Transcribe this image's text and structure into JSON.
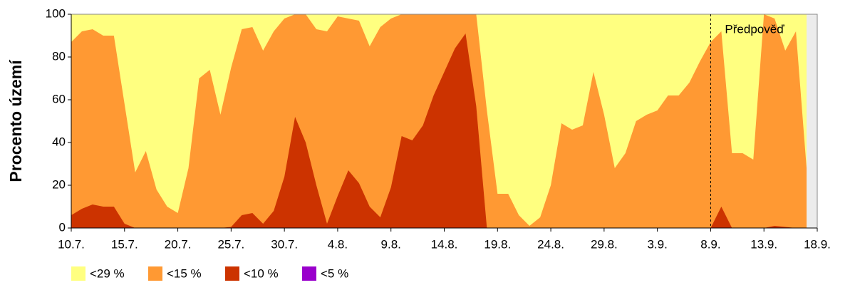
{
  "chart_data": {
    "type": "area",
    "ylabel": "Procento území",
    "categories": [
      "10.7.",
      null,
      null,
      null,
      null,
      "15.7.",
      null,
      null,
      null,
      null,
      "20.7.",
      null,
      null,
      null,
      null,
      "25.7.",
      null,
      null,
      null,
      null,
      "30.7.",
      null,
      null,
      null,
      null,
      "4.8.",
      null,
      null,
      null,
      null,
      "9.8.",
      null,
      null,
      null,
      null,
      "14.8.",
      null,
      null,
      null,
      null,
      "19.8.",
      null,
      null,
      null,
      null,
      "24.8.",
      null,
      null,
      null,
      null,
      "29.8.",
      null,
      null,
      null,
      null,
      "3.9.",
      null,
      null,
      null,
      null,
      "8.9.",
      null,
      null,
      null,
      null,
      "13.9.",
      null,
      null,
      null,
      null,
      "18.9."
    ],
    "series": [
      {
        "name": "<29 %",
        "color": "#ffff80",
        "values": [
          100,
          100,
          100,
          100,
          100,
          100,
          100,
          100,
          100,
          100,
          100,
          100,
          100,
          100,
          100,
          100,
          100,
          100,
          100,
          100,
          100,
          100,
          100,
          100,
          100,
          100,
          100,
          100,
          100,
          100,
          100,
          100,
          100,
          100,
          100,
          100,
          100,
          100,
          100,
          100,
          100,
          100,
          100,
          100,
          100,
          100,
          100,
          100,
          100,
          100,
          100,
          100,
          100,
          100,
          100,
          100,
          100,
          100,
          100,
          100,
          100,
          100,
          100,
          100,
          100,
          100,
          100,
          100,
          100,
          100,
          null
        ]
      },
      {
        "name": "<15 %",
        "color": "#ff9933",
        "values": [
          87,
          92,
          93,
          90,
          90,
          58,
          26,
          36,
          18,
          10,
          7,
          28,
          70,
          74,
          53,
          75,
          93,
          94,
          83,
          92,
          98,
          100,
          100,
          93,
          92,
          99,
          98,
          97,
          85,
          94,
          98,
          100,
          100,
          100,
          100,
          100,
          100,
          100,
          100,
          55,
          16,
          16,
          6,
          1,
          5,
          20,
          49,
          46,
          48,
          73,
          53,
          28,
          35,
          50,
          53,
          55,
          62,
          62,
          68,
          78,
          87,
          92,
          35,
          35,
          32,
          100,
          98,
          83,
          92,
          28,
          null
        ]
      },
      {
        "name": "<10 %",
        "color": "#cc3300",
        "values": [
          6,
          9,
          11,
          10,
          10,
          2,
          0,
          0,
          0,
          0,
          0,
          0,
          0,
          0,
          0,
          0.5,
          6,
          7,
          2,
          8,
          24,
          52,
          40,
          20,
          2,
          15,
          27,
          21,
          10,
          5,
          19,
          43,
          41,
          48,
          62,
          73,
          84,
          91,
          57,
          0,
          0,
          0,
          0,
          0,
          0,
          0,
          0,
          0,
          0,
          0,
          0,
          0,
          0,
          0,
          0,
          0,
          0,
          0,
          0,
          0,
          0,
          10,
          0,
          0,
          0,
          0,
          1,
          0.5,
          0,
          0,
          null
        ]
      },
      {
        "name": "<5 %",
        "color": "#9900cc",
        "values": [
          0,
          0,
          0,
          0,
          0,
          0,
          0,
          0,
          0,
          0,
          0,
          0,
          0,
          0,
          0,
          0,
          0,
          0,
          0,
          0,
          0,
          0,
          0,
          0,
          0,
          0,
          0,
          0,
          0,
          0,
          0,
          0,
          0,
          0,
          0,
          0,
          0,
          0,
          0,
          0,
          0,
          0,
          0,
          0,
          0,
          0,
          0,
          0,
          0,
          0,
          0,
          0,
          0,
          0,
          0,
          0,
          0,
          0,
          0,
          0,
          0,
          0,
          0,
          0,
          0,
          0,
          0,
          0,
          0,
          0,
          null
        ]
      }
    ],
    "forecast": {
      "label": "Předpověď",
      "at": "8.9."
    },
    "ylim": [
      0,
      100
    ],
    "yticks": [
      0,
      20,
      40,
      60,
      80,
      100
    ]
  }
}
